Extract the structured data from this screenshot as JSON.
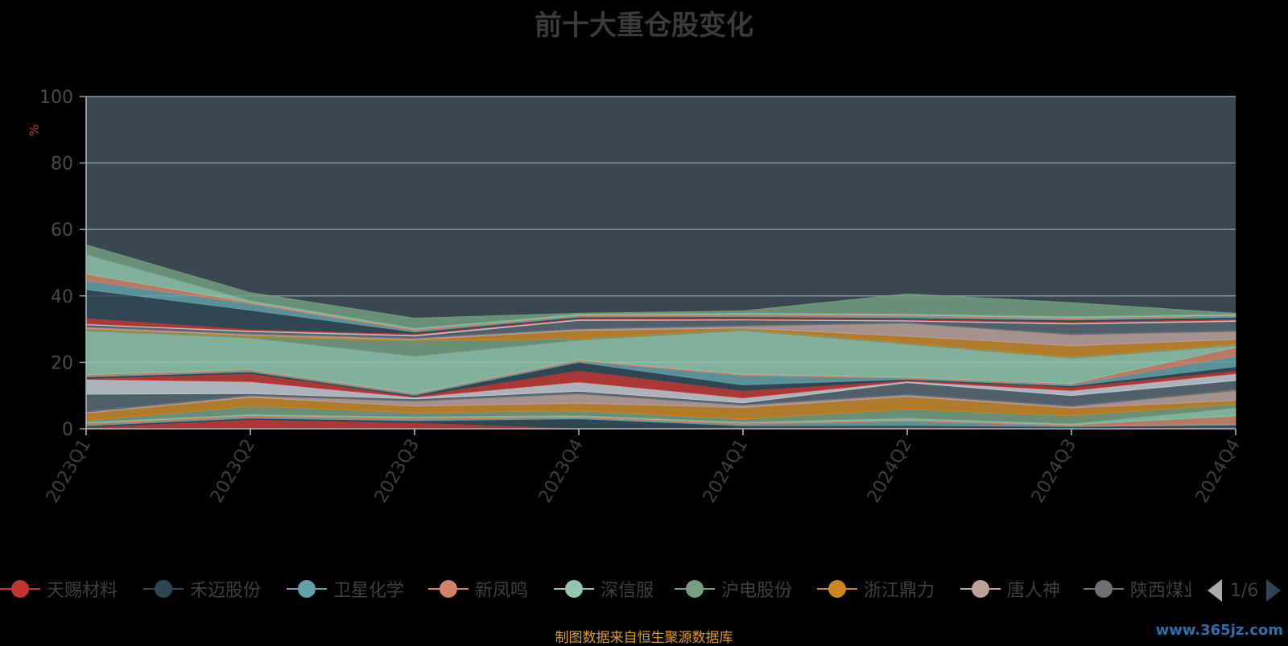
{
  "chart_data": {
    "type": "area",
    "title": "前十大重仓股变化",
    "ylabel": "%",
    "ylim": [
      0,
      100
    ],
    "yticks": [
      0,
      20,
      40,
      60,
      80,
      100
    ],
    "grid": true,
    "stacked": true,
    "legend_position": "bottom",
    "categories": [
      "2023Q1",
      "2023Q2",
      "2023Q3",
      "2023Q4",
      "2024Q1",
      "2024Q2",
      "2024Q3",
      "2024Q4"
    ],
    "series": [
      {
        "name": "天赐材料",
        "values": [
          0.5,
          2.8,
          1.9,
          0.2,
          0.4,
          0.5,
          0.2,
          0.6
        ]
      },
      {
        "name": "禾迈股份",
        "values": [
          0.4,
          0.4,
          0.5,
          2.8,
          0.5,
          0.5,
          0.4,
          0.5
        ]
      },
      {
        "name": "卫星化学",
        "values": [
          0.4,
          0.3,
          0.4,
          0.3,
          0.4,
          1.3,
          0.3,
          0.3
        ]
      },
      {
        "name": "新凤鸣",
        "values": [
          0.4,
          0.5,
          0.5,
          0.4,
          0.4,
          0.4,
          0.3,
          2.5
        ]
      },
      {
        "name": "深信服",
        "values": [
          0.3,
          0.3,
          0.3,
          0.3,
          0.3,
          0.5,
          0.3,
          2.3
        ]
      },
      {
        "name": "沪电股份",
        "values": [
          0.4,
          2.5,
          1.3,
          1.4,
          0.9,
          2.7,
          2.4,
          1.2
        ]
      },
      {
        "name": "浙江鼎力",
        "values": [
          2.3,
          2.7,
          1.9,
          2.3,
          3.5,
          3.8,
          2.4,
          1.1
        ]
      },
      {
        "name": "唐人神",
        "values": [
          0.3,
          0.4,
          1.5,
          2.8,
          0.7,
          0.5,
          0.4,
          3.0
        ]
      },
      {
        "name": "陕西煤业",
        "values": [
          0.4,
          0.4,
          0.4,
          0.4,
          0.3,
          0.3,
          0.4,
          0.5
        ]
      },
      {
        "name": "",
        "values": [
          5.0,
          0.3,
          0.3,
          0.4,
          0.4,
          3.4,
          2.9,
          2.5
        ]
      },
      {
        "name": "",
        "values": [
          4.5,
          3.6,
          0.5,
          2.8,
          1.5,
          0.4,
          1.5,
          2.1
        ]
      },
      {
        "name": "",
        "values": [
          0.3,
          2.5,
          0.3,
          3.5,
          2.2,
          0.3,
          1.1,
          0.9
        ]
      },
      {
        "name": "",
        "values": [
          0.4,
          0.4,
          0.3,
          2.4,
          1.7,
          0.3,
          0.3,
          1.2
        ]
      },
      {
        "name": "",
        "values": [
          0.3,
          0.3,
          0.3,
          0.4,
          2.8,
          0.3,
          0.4,
          3.2
        ]
      },
      {
        "name": "",
        "values": [
          0.4,
          0.4,
          0.3,
          0.3,
          0.4,
          0.3,
          0.3,
          2.6
        ]
      },
      {
        "name": "",
        "values": [
          13.1,
          9.5,
          11.1,
          5.9,
          13.1,
          9.9,
          7.6,
          0.5
        ]
      },
      {
        "name": "",
        "values": [
          0.4,
          0.4,
          4.6,
          0.5,
          0.4,
          0.4,
          0.4,
          0.4
        ]
      },
      {
        "name": "",
        "values": [
          0.4,
          0.4,
          0.4,
          2.5,
          0.4,
          2.1,
          3.4,
          1.5
        ]
      },
      {
        "name": "",
        "values": [
          0.4,
          0.4,
          0.4,
          0.4,
          0.6,
          3.9,
          3.3,
          2.4
        ]
      },
      {
        "name": "",
        "values": [
          0.3,
          0.4,
          0.3,
          0.3,
          0.3,
          0.3,
          0.4,
          0.4
        ]
      },
      {
        "name": "",
        "values": [
          0.4,
          0.3,
          0.4,
          2.3,
          1.5,
          0.3,
          2.8,
          2.6
        ]
      },
      {
        "name": "",
        "values": [
          0.3,
          0.4,
          0.4,
          0.4,
          0.3,
          0.3,
          0.4,
          0.4
        ]
      },
      {
        "name": "",
        "values": [
          1.8,
          0.4,
          0.4,
          0.3,
          0.4,
          0.4,
          0.4,
          0.4
        ]
      },
      {
        "name": "",
        "values": [
          8.5,
          5.7,
          0.4,
          0.3,
          0.3,
          0.3,
          0.4,
          0.4
        ]
      },
      {
        "name": "",
        "values": [
          2.7,
          1.9,
          0.4,
          0.3,
          0.4,
          0.4,
          0.3,
          0.4
        ]
      },
      {
        "name": "",
        "values": [
          2.0,
          0.4,
          0.4,
          0.3,
          0.4,
          0.4,
          0.4,
          0.3
        ]
      },
      {
        "name": "",
        "values": [
          5.8,
          0.6,
          0.4,
          0.3,
          0.4,
          0.4,
          0.4,
          0.3
        ]
      },
      {
        "name": "",
        "values": [
          3.0,
          2.4,
          3.0,
          0.3,
          0.6,
          6.0,
          4.2,
          0.3
        ]
      }
    ]
  },
  "legend": {
    "items": [
      {
        "label": "天赐材料",
        "color": "#c23531"
      },
      {
        "label": "禾迈股份",
        "color": "#2f4554"
      },
      {
        "label": "卫星化学",
        "color": "#61a0a8"
      },
      {
        "label": "新凤鸣",
        "color": "#d48265"
      },
      {
        "label": "深信服",
        "color": "#91c7ae"
      },
      {
        "label": "沪电股份",
        "color": "#749f83"
      },
      {
        "label": "浙江鼎力",
        "color": "#ca8622"
      },
      {
        "label": "唐人神",
        "color": "#bda29a"
      },
      {
        "label": "陕西煤业",
        "color": "#6e7074"
      }
    ],
    "page": "1/6"
  },
  "palette": [
    "#c23531",
    "#2f4554",
    "#61a0a8",
    "#d48265",
    "#91c7ae",
    "#749f83",
    "#ca8622",
    "#bda29a",
    "#6e7074",
    "#546570",
    "#c4ccd3"
  ],
  "plot_background": "#3a4750",
  "source_note": "制图数据来自恒生聚源数据库",
  "watermark": "www.365jz.com"
}
